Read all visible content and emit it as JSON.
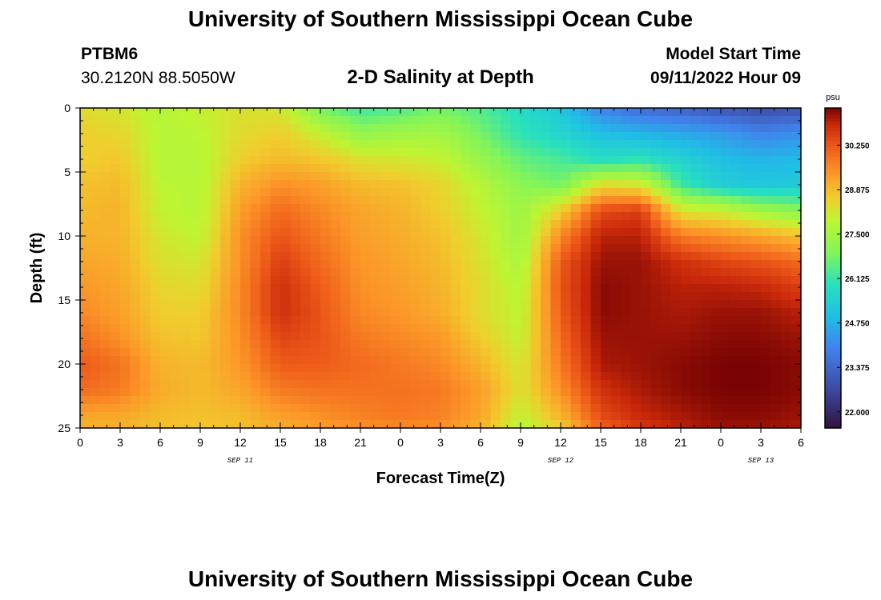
{
  "header": {
    "title": "University of Southern Mississippi Ocean Cube",
    "station_id": "PTBM6",
    "coordinates": "30.2120N  88.5050W",
    "subtitle": "2-D Salinity at Depth",
    "model_start_label": "Model Start Time",
    "model_start_value": "09/11/2022 Hour 09"
  },
  "footer": {
    "title": "University of Southern Mississippi Ocean Cube"
  },
  "chart_data": {
    "type": "heatmap",
    "title": "2-D Salinity at Depth",
    "xlabel": "Forecast Time(Z)",
    "ylabel": "Depth (ft)",
    "x_hours_range": [
      0,
      54
    ],
    "depth_range_ft": [
      0,
      25
    ],
    "x_ticks": [
      {
        "hour": 0,
        "label": "0"
      },
      {
        "hour": 3,
        "label": "3"
      },
      {
        "hour": 6,
        "label": "6"
      },
      {
        "hour": 9,
        "label": "9"
      },
      {
        "hour": 12,
        "label": "12"
      },
      {
        "hour": 15,
        "label": "15"
      },
      {
        "hour": 18,
        "label": "18"
      },
      {
        "hour": 21,
        "label": "21"
      },
      {
        "hour": 24,
        "label": "0"
      },
      {
        "hour": 27,
        "label": "3"
      },
      {
        "hour": 30,
        "label": "6"
      },
      {
        "hour": 33,
        "label": "9"
      },
      {
        "hour": 36,
        "label": "12"
      },
      {
        "hour": 39,
        "label": "15"
      },
      {
        "hour": 42,
        "label": "18"
      },
      {
        "hour": 45,
        "label": "21"
      },
      {
        "hour": 48,
        "label": "0"
      },
      {
        "hour": 51,
        "label": "3"
      },
      {
        "hour": 54,
        "label": "6"
      }
    ],
    "day_labels": [
      {
        "hour": 12,
        "label": "SEP 11"
      },
      {
        "hour": 36,
        "label": "SEP 12"
      },
      {
        "hour": 51,
        "label": "SEP 13"
      }
    ],
    "y_ticks": [
      {
        "depth": 0,
        "label": "0"
      },
      {
        "depth": 5,
        "label": "5"
      },
      {
        "depth": 10,
        "label": "10"
      },
      {
        "depth": 15,
        "label": "15"
      },
      {
        "depth": 20,
        "label": "20"
      },
      {
        "depth": 25,
        "label": "25"
      }
    ],
    "colorbar": {
      "unit": "psu",
      "range": [
        21.5,
        31.4
      ],
      "ticks": [
        22.0,
        23.375,
        24.75,
        26.125,
        27.5,
        28.875,
        30.25
      ],
      "tick_labels": [
        "22.000",
        "23.375",
        "24.750",
        "26.125",
        "27.500",
        "28.875",
        "30.250"
      ]
    },
    "depths_ft": [
      0,
      2,
      4,
      6,
      8,
      10,
      12,
      14,
      16,
      18,
      20,
      22,
      24,
      25
    ],
    "times_hour": [
      0,
      3,
      6,
      9,
      12,
      15,
      18,
      21,
      24,
      27,
      30,
      33,
      36,
      39,
      42,
      45,
      48,
      51,
      54
    ],
    "salinity_psu": [
      [
        28.4,
        28.2,
        27.8,
        28.0,
        28.3,
        28.2,
        26.8,
        26.2,
        26.4,
        26.8,
        26.4,
        25.8,
        25.2,
        24.0,
        23.5,
        23.3,
        23.0,
        22.8,
        22.9
      ],
      [
        28.6,
        28.5,
        27.8,
        27.9,
        28.4,
        28.6,
        28.0,
        27.2,
        27.4,
        27.5,
        26.8,
        26.0,
        25.6,
        25.0,
        24.8,
        24.6,
        24.4,
        24.0,
        24.2
      ],
      [
        28.6,
        28.7,
        27.8,
        27.8,
        28.6,
        28.9,
        28.7,
        28.3,
        28.2,
        28.0,
        27.3,
        26.6,
        26.3,
        25.8,
        26.0,
        25.5,
        25.0,
        24.8,
        24.9
      ],
      [
        28.8,
        28.9,
        27.9,
        27.8,
        29.0,
        29.5,
        29.3,
        28.9,
        28.8,
        28.5,
        27.8,
        27.1,
        26.8,
        28.4,
        28.2,
        26.2,
        25.4,
        25.2,
        25.3
      ],
      [
        28.9,
        29.0,
        28.0,
        27.8,
        29.3,
        30.0,
        29.6,
        29.2,
        29.0,
        28.6,
        28.0,
        27.4,
        28.6,
        30.4,
        30.6,
        28.2,
        28.0,
        27.4,
        27.0
      ],
      [
        29.0,
        29.0,
        28.2,
        27.9,
        29.5,
        30.3,
        29.8,
        29.3,
        29.1,
        28.8,
        28.2,
        27.4,
        29.6,
        31.0,
        31.0,
        29.8,
        29.5,
        29.2,
        28.8
      ],
      [
        29.2,
        29.1,
        28.3,
        28.2,
        29.5,
        30.6,
        30.0,
        29.4,
        29.2,
        28.9,
        28.3,
        27.6,
        30.2,
        31.2,
        31.2,
        30.8,
        30.5,
        30.3,
        30.0
      ],
      [
        29.4,
        29.2,
        28.5,
        28.4,
        29.6,
        30.8,
        30.2,
        29.5,
        29.3,
        29.0,
        28.4,
        27.8,
        30.3,
        31.3,
        31.2,
        31.0,
        31.0,
        30.9,
        30.6
      ],
      [
        29.6,
        29.3,
        28.6,
        28.6,
        29.6,
        30.8,
        30.3,
        29.6,
        29.4,
        29.1,
        28.4,
        27.9,
        30.2,
        31.3,
        31.2,
        31.1,
        31.2,
        31.2,
        31.0
      ],
      [
        29.9,
        29.5,
        28.8,
        28.7,
        29.5,
        30.5,
        30.3,
        29.8,
        29.6,
        29.4,
        28.6,
        28.0,
        30.0,
        31.2,
        31.2,
        31.2,
        31.3,
        31.3,
        31.2
      ],
      [
        30.2,
        29.9,
        29.0,
        28.9,
        29.4,
        30.2,
        30.2,
        30.0,
        29.8,
        29.6,
        29.0,
        28.2,
        29.8,
        31.1,
        31.2,
        31.3,
        31.4,
        31.4,
        31.3
      ],
      [
        30.0,
        29.8,
        29.1,
        28.9,
        29.2,
        29.8,
        29.9,
        29.9,
        29.9,
        29.8,
        29.3,
        28.3,
        29.5,
        30.8,
        31.1,
        31.3,
        31.4,
        31.4,
        31.3
      ],
      [
        29.2,
        29.2,
        28.9,
        28.8,
        28.9,
        29.3,
        29.5,
        29.7,
        29.8,
        29.7,
        29.2,
        28.0,
        29.0,
        30.4,
        30.9,
        31.1,
        31.3,
        31.3,
        31.2
      ],
      [
        29.0,
        29.0,
        28.8,
        28.7,
        28.8,
        29.1,
        29.3,
        29.5,
        29.6,
        29.5,
        29.0,
        27.8,
        28.6,
        30.1,
        30.7,
        31.0,
        31.2,
        31.2,
        31.1
      ]
    ]
  }
}
